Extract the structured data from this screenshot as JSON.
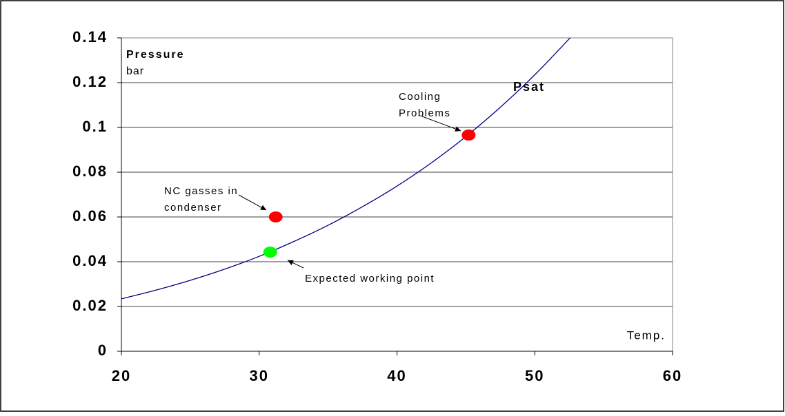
{
  "chart_data": {
    "type": "line",
    "x_label": "Temp.",
    "y_label": "Pressure",
    "y_unit": "bar",
    "xlim": [
      20,
      60
    ],
    "xticks": [
      20,
      30,
      40,
      50,
      60
    ],
    "ylim": [
      0,
      0.14
    ],
    "yticks": [
      0,
      0.02,
      0.04,
      0.06,
      0.08,
      0.1,
      0.12,
      0.14
    ],
    "grid": true,
    "series": [
      {
        "name": "Psat",
        "color": "#000080",
        "x": [
          20,
          22.5,
          25,
          27.5,
          30,
          32.5,
          35,
          37.5,
          40,
          42.5,
          45,
          47.5,
          50,
          52.5,
          53
        ],
        "values": [
          0.0234,
          0.0273,
          0.0317,
          0.0367,
          0.0424,
          0.049,
          0.0563,
          0.0646,
          0.0738,
          0.0842,
          0.0959,
          0.109,
          0.1235,
          0.1396,
          0.143
        ]
      }
    ],
    "points": [
      {
        "x": 45.2,
        "y": 0.0966,
        "color": "#ff0000"
      },
      {
        "x": 31.2,
        "y": 0.06,
        "color": "#ff0000"
      },
      {
        "x": 30.8,
        "y": 0.0443,
        "color": "#00ff00"
      }
    ],
    "annotations": [
      {
        "lines": [
          "Cooling",
          "Problems"
        ]
      },
      {
        "lines": [
          "NC gasses in",
          "condenser"
        ]
      },
      {
        "lines": [
          "Expected working point"
        ]
      }
    ]
  }
}
